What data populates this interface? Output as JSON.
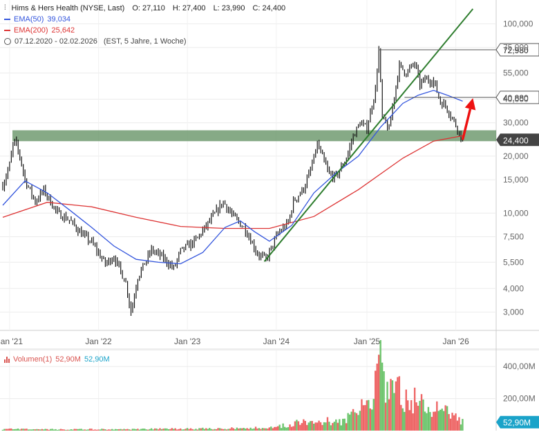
{
  "header": {
    "symbol_name": "Hims & Hers Health (NYSE, Last)",
    "ohlc": [
      {
        "label": "O:",
        "value": "27,110"
      },
      {
        "label": "H:",
        "value": "27,400"
      },
      {
        "label": "L:",
        "value": "23,990"
      },
      {
        "label": "C:",
        "value": "24,400"
      }
    ],
    "ema50_label": "EMA(50)",
    "ema50_value": "39,034",
    "ema200_label": "EMA(200)",
    "ema200_value": "25,642",
    "date_range": "07.12.2020 - 02.02.2026",
    "period_info": "(EST, 5 Jahre, 1 Woche)"
  },
  "volume_legend": {
    "label": "Volumen(1)",
    "value_red": "52,90M",
    "value_blue": "52,90M"
  },
  "colors": {
    "ema50": "#3355dd",
    "ema200": "#dd3333",
    "trendline": "#2e7d2e",
    "zone": "#5e8e5e",
    "arrow": "#ee1111",
    "vol_up": "#6dc56d",
    "vol_down": "#ee6666",
    "vol_badge": "#1aa3c9",
    "price_badge": "#444444"
  },
  "chart_data": [
    {
      "type": "candlestick",
      "title": "Hims & Hers Health (NYSE, Last)",
      "scale": "log",
      "ylim": [
        2.4,
        125
      ],
      "grid": true,
      "y_ticks": [
        3,
        4,
        5.5,
        7.5,
        10,
        15,
        20,
        30,
        40,
        55,
        75,
        100
      ],
      "y_tick_labels": [
        "3,000",
        "4,000",
        "5,500",
        "7,500",
        "10,000",
        "15,000",
        "20,000",
        "30,000",
        "40,000",
        "55,000",
        "75,000",
        "100,000"
      ],
      "x_tick_labels": [
        "Jan '21",
        "Jan '22",
        "Jan '23",
        "Jan '24",
        "Jan '25",
        "Jan '26"
      ],
      "x_tick_dates": [
        "2021-01-04",
        "2022-01-03",
        "2023-01-02",
        "2024-01-01",
        "2025-01-06",
        "2026-01-05"
      ],
      "x_range": [
        "2020-12-07",
        "2026-02-02"
      ],
      "price_keypoints": [
        [
          "2020-12-07",
          14.0
        ],
        [
          "2021-01-04",
          18.0
        ],
        [
          "2021-01-22",
          24.5
        ],
        [
          "2021-02-15",
          20.0
        ],
        [
          "2021-03-08",
          15.0
        ],
        [
          "2021-04-19",
          11.5
        ],
        [
          "2021-05-24",
          13.2
        ],
        [
          "2021-07-19",
          10.0
        ],
        [
          "2021-09-06",
          9.2
        ],
        [
          "2021-10-25",
          7.8
        ],
        [
          "2021-12-06",
          7.0
        ],
        [
          "2022-01-31",
          5.4
        ],
        [
          "2022-03-07",
          5.9
        ],
        [
          "2022-04-25",
          4.3
        ],
        [
          "2022-05-16",
          3.0
        ],
        [
          "2022-06-13",
          4.6
        ],
        [
          "2022-08-08",
          6.4
        ],
        [
          "2022-09-26",
          5.8
        ],
        [
          "2022-11-07",
          5.1
        ],
        [
          "2022-12-05",
          6.3
        ],
        [
          "2023-02-06",
          7.2
        ],
        [
          "2023-03-27",
          8.8
        ],
        [
          "2023-05-01",
          10.2
        ],
        [
          "2023-05-29",
          11.5
        ],
        [
          "2023-07-03",
          9.8
        ],
        [
          "2023-08-28",
          8.2
        ],
        [
          "2023-10-16",
          6.1
        ],
        [
          "2023-11-20",
          5.7
        ],
        [
          "2024-01-08",
          7.8
        ],
        [
          "2024-02-19",
          8.9
        ],
        [
          "2024-03-11",
          11.5
        ],
        [
          "2024-04-22",
          13.5
        ],
        [
          "2024-05-20",
          16.8
        ],
        [
          "2024-06-17",
          23.0
        ],
        [
          "2024-08-05",
          16.0
        ],
        [
          "2024-09-02",
          15.5
        ],
        [
          "2024-10-14",
          19.5
        ],
        [
          "2024-11-11",
          25.5
        ],
        [
          "2024-12-09",
          30.0
        ],
        [
          "2025-01-06",
          28.0
        ],
        [
          "2025-02-10",
          45.0
        ],
        [
          "2025-02-24",
          72.98
        ],
        [
          "2025-03-10",
          32.0
        ],
        [
          "2025-04-07",
          27.5
        ],
        [
          "2025-04-28",
          42.0
        ],
        [
          "2025-05-19",
          60.0
        ],
        [
          "2025-06-16",
          55.0
        ],
        [
          "2025-07-21",
          62.0
        ],
        [
          "2025-08-11",
          48.0
        ],
        [
          "2025-09-01",
          51.0
        ],
        [
          "2025-10-06",
          50.0
        ],
        [
          "2025-11-03",
          38.5
        ],
        [
          "2025-11-24",
          37.0
        ],
        [
          "2025-12-15",
          33.0
        ],
        [
          "2026-01-12",
          28.0
        ],
        [
          "2026-02-02",
          24.4
        ]
      ],
      "ema50_keypoints": [
        [
          "2020-12-07",
          11.0
        ],
        [
          "2021-03-08",
          14.8
        ],
        [
          "2021-06-07",
          12.8
        ],
        [
          "2021-09-06",
          10.4
        ],
        [
          "2021-12-06",
          8.4
        ],
        [
          "2022-03-07",
          6.7
        ],
        [
          "2022-06-06",
          5.7
        ],
        [
          "2022-09-05",
          5.5
        ],
        [
          "2022-12-05",
          5.4
        ],
        [
          "2023-03-06",
          6.2
        ],
        [
          "2023-06-05",
          8.4
        ],
        [
          "2023-08-07",
          9.1
        ],
        [
          "2023-10-02",
          8.0
        ],
        [
          "2023-12-04",
          7.1
        ],
        [
          "2024-03-04",
          8.6
        ],
        [
          "2024-06-03",
          12.8
        ],
        [
          "2024-09-02",
          16.3
        ],
        [
          "2024-12-02",
          20.0
        ],
        [
          "2025-03-03",
          28.5
        ],
        [
          "2025-06-02",
          38.0
        ],
        [
          "2025-08-04",
          42.0
        ],
        [
          "2025-10-06",
          44.5
        ],
        [
          "2025-12-01",
          42.0
        ],
        [
          "2026-02-02",
          39.034
        ]
      ],
      "ema200_keypoints": [
        [
          "2020-12-07",
          9.5
        ],
        [
          "2021-06-07",
          11.4
        ],
        [
          "2021-12-06",
          10.8
        ],
        [
          "2022-06-06",
          9.5
        ],
        [
          "2022-12-05",
          8.5
        ],
        [
          "2023-06-05",
          8.3
        ],
        [
          "2023-12-04",
          8.3
        ],
        [
          "2024-06-03",
          9.6
        ],
        [
          "2024-12-02",
          13.3
        ],
        [
          "2025-06-02",
          19.5
        ],
        [
          "2025-10-06",
          24.0
        ],
        [
          "2026-02-02",
          25.642
        ]
      ],
      "annotations": {
        "support_zone": {
          "from": 23.99,
          "to": 27.4
        },
        "trendline": {
          "from": [
            "2023-11-13",
            5.55
          ],
          "to": [
            "2026-03-16",
            120
          ]
        },
        "resistance_lines": [
          {
            "value": 72.98,
            "from_date": "2025-02-24",
            "label": "72,980"
          },
          {
            "value": 40.88,
            "from_date": "2025-06-09",
            "label": "40,880"
          }
        ],
        "arrow": {
          "from": [
            "2026-02-02",
            24.4
          ],
          "to": [
            "2026-03-16",
            40.5
          ]
        },
        "last_price_label": "24,400",
        "last_price": 24.4
      }
    },
    {
      "type": "bar",
      "title": "Volumen(1)",
      "ylim": [
        0,
        500
      ],
      "y_ticks": [
        200,
        400
      ],
      "y_tick_labels": [
        "200,00M",
        "400,00M"
      ],
      "last_value_label": "52,90M",
      "last_value": 52.9,
      "volume_keypoints": [
        [
          "2020-12-07",
          10
        ],
        [
          "2021-06-07",
          8
        ],
        [
          "2022-06-06",
          10
        ],
        [
          "2023-06-05",
          14
        ],
        [
          "2023-12-04",
          20
        ],
        [
          "2024-03-04",
          40
        ],
        [
          "2024-06-03",
          80
        ],
        [
          "2024-09-02",
          50
        ],
        [
          "2024-12-02",
          110
        ],
        [
          "2025-02-03",
          260
        ],
        [
          "2025-02-24",
          450
        ],
        [
          "2025-04-07",
          280
        ],
        [
          "2025-06-02",
          230
        ],
        [
          "2025-08-04",
          200
        ],
        [
          "2025-10-06",
          150
        ],
        [
          "2025-12-01",
          110
        ],
        [
          "2026-02-02",
          52.9
        ]
      ]
    }
  ]
}
